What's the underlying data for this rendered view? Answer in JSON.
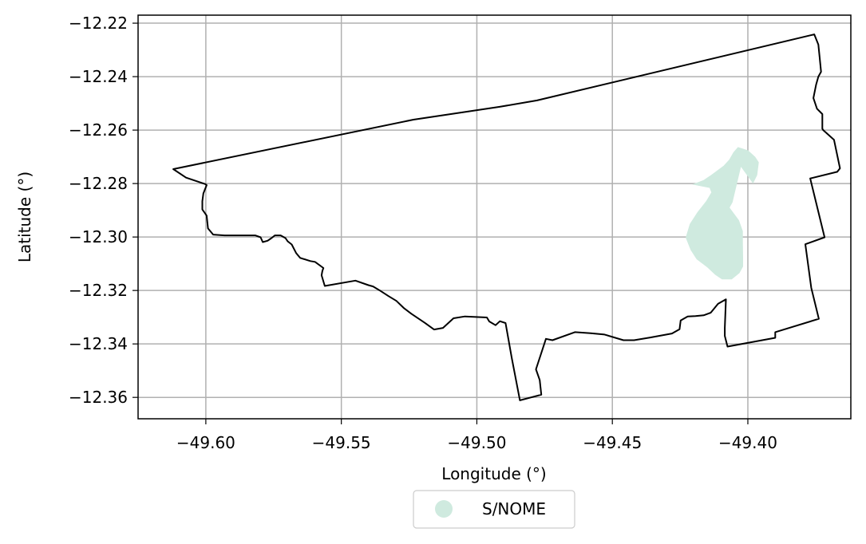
{
  "chart_data": {
    "type": "map",
    "xlabel": "Longitude (°)",
    "ylabel": "Latitude (°)",
    "xlim": [
      -49.625,
      -49.362
    ],
    "ylim": [
      -12.368,
      -12.217
    ],
    "grid": true,
    "legend_position": "below-center",
    "x_ticks": [
      {
        "value": -49.6,
        "label": "−49.60"
      },
      {
        "value": -49.55,
        "label": "−49.55"
      },
      {
        "value": -49.5,
        "label": "−49.50"
      },
      {
        "value": -49.45,
        "label": "−49.45"
      },
      {
        "value": -49.4,
        "label": "−49.40"
      }
    ],
    "y_ticks": [
      {
        "value": -12.22,
        "label": "−12.22"
      },
      {
        "value": -12.24,
        "label": "−12.24"
      },
      {
        "value": -12.26,
        "label": "−12.26"
      },
      {
        "value": -12.28,
        "label": "−12.28"
      },
      {
        "value": -12.3,
        "label": "−12.30"
      },
      {
        "value": -12.32,
        "label": "−12.32"
      },
      {
        "value": -12.34,
        "label": "−12.34"
      },
      {
        "value": -12.36,
        "label": "−12.36"
      }
    ],
    "boundary": {
      "color": "#000000",
      "coords": [
        [
          -49.612,
          -12.2746
        ],
        [
          -49.5234,
          -12.2561
        ],
        [
          -49.4916,
          -12.2513
        ],
        [
          -49.4778,
          -12.2489
        ],
        [
          -49.3755,
          -12.2242
        ],
        [
          -49.374,
          -12.228
        ],
        [
          -49.3735,
          -12.233
        ],
        [
          -49.373,
          -12.2382
        ],
        [
          -49.374,
          -12.24
        ],
        [
          -49.3748,
          -12.243
        ],
        [
          -49.3758,
          -12.248
        ],
        [
          -49.3745,
          -12.252
        ],
        [
          -49.3725,
          -12.254
        ],
        [
          -49.3725,
          -12.2595
        ],
        [
          -49.3722,
          -12.26
        ],
        [
          -49.3682,
          -12.2636
        ],
        [
          -49.366,
          -12.2743
        ],
        [
          -49.367,
          -12.2756
        ],
        [
          -49.377,
          -12.2781
        ],
        [
          -49.3717,
          -12.3001
        ],
        [
          -49.3788,
          -12.3027
        ],
        [
          -49.3766,
          -12.319
        ],
        [
          -49.3738,
          -12.3306
        ],
        [
          -49.3899,
          -12.3356
        ],
        [
          -49.3899,
          -12.3377
        ],
        [
          -49.4075,
          -12.341
        ],
        [
          -49.4085,
          -12.337
        ],
        [
          -49.4085,
          -12.334
        ],
        [
          -49.4081,
          -12.3233
        ],
        [
          -49.411,
          -12.325
        ],
        [
          -49.4137,
          -12.3283
        ],
        [
          -49.4163,
          -12.3293
        ],
        [
          -49.4193,
          -12.3296
        ],
        [
          -49.4222,
          -12.3297
        ],
        [
          -49.4248,
          -12.3312
        ],
        [
          -49.4252,
          -12.3345
        ],
        [
          -49.428,
          -12.3361
        ],
        [
          -49.436,
          -12.3376
        ],
        [
          -49.442,
          -12.3386
        ],
        [
          -49.4459,
          -12.3386
        ],
        [
          -49.4529,
          -12.3365
        ],
        [
          -49.458,
          -12.336
        ],
        [
          -49.4638,
          -12.3356
        ],
        [
          -49.4721,
          -12.3386
        ],
        [
          -49.4745,
          -12.3381
        ],
        [
          -49.4782,
          -12.3495
        ],
        [
          -49.4768,
          -12.3535
        ],
        [
          -49.4762,
          -12.359
        ],
        [
          -49.4841,
          -12.3611
        ],
        [
          -49.4871,
          -12.3453
        ],
        [
          -49.4894,
          -12.3322
        ],
        [
          -49.4915,
          -12.3315
        ],
        [
          -49.4931,
          -12.333
        ],
        [
          -49.4954,
          -12.3316
        ],
        [
          -49.4963,
          -12.3301
        ],
        [
          -49.5044,
          -12.3297
        ],
        [
          -49.5086,
          -12.3304
        ],
        [
          -49.5125,
          -12.334
        ],
        [
          -49.5158,
          -12.3346
        ],
        [
          -49.5192,
          -12.3321
        ],
        [
          -49.5242,
          -12.3287
        ],
        [
          -49.5268,
          -12.3267
        ],
        [
          -49.5297,
          -12.3239
        ],
        [
          -49.5326,
          -12.3221
        ],
        [
          -49.5358,
          -12.32
        ],
        [
          -49.5383,
          -12.3185
        ],
        [
          -49.54,
          -12.318
        ],
        [
          -49.5448,
          -12.3163
        ],
        [
          -49.5561,
          -12.3183
        ],
        [
          -49.5573,
          -12.3143
        ],
        [
          -49.557,
          -12.3127
        ],
        [
          -49.5566,
          -12.3116
        ],
        [
          -49.5597,
          -12.3093
        ],
        [
          -49.5614,
          -12.309
        ],
        [
          -49.5652,
          -12.3078
        ],
        [
          -49.5667,
          -12.306
        ],
        [
          -49.5683,
          -12.3028
        ],
        [
          -49.5698,
          -12.3016
        ],
        [
          -49.5706,
          -12.3004
        ],
        [
          -49.5724,
          -12.2994
        ],
        [
          -49.5745,
          -12.2994
        ],
        [
          -49.5758,
          -12.3004
        ],
        [
          -49.5772,
          -12.3014
        ],
        [
          -49.579,
          -12.3019
        ],
        [
          -49.5798,
          -12.3001
        ],
        [
          -49.5818,
          -12.2994
        ],
        [
          -49.5875,
          -12.2994
        ],
        [
          -49.5931,
          -12.2994
        ],
        [
          -49.5973,
          -12.2991
        ],
        [
          -49.5992,
          -12.2968
        ],
        [
          -49.5997,
          -12.292
        ],
        [
          -49.6013,
          -12.2897
        ],
        [
          -49.6013,
          -12.2866
        ],
        [
          -49.6009,
          -12.2837
        ],
        [
          -49.5997,
          -12.2806
        ],
        [
          -49.6002,
          -12.2802
        ],
        [
          -49.6073,
          -12.2778
        ],
        [
          -49.612,
          -12.2746
        ]
      ]
    },
    "series": [
      {
        "name": "S/NOME",
        "color": "#cfeadf",
        "coords": [
          [
            -49.42,
            -12.2803
          ],
          [
            -49.4162,
            -12.2788
          ],
          [
            -49.4133,
            -12.2768
          ],
          [
            -49.4088,
            -12.2734
          ],
          [
            -49.4068,
            -12.2712
          ],
          [
            -49.4052,
            -12.2684
          ],
          [
            -49.4036,
            -12.2665
          ],
          [
            -49.4,
            -12.2677
          ],
          [
            -49.3974,
            -12.2701
          ],
          [
            -49.3961,
            -12.2721
          ],
          [
            -49.3967,
            -12.2768
          ],
          [
            -49.3981,
            -12.2797
          ],
          [
            -49.4026,
            -12.2734
          ],
          [
            -49.4058,
            -12.287
          ],
          [
            -49.4069,
            -12.289
          ],
          [
            -49.4034,
            -12.2938
          ],
          [
            -49.402,
            -12.2978
          ],
          [
            -49.402,
            -12.302
          ],
          [
            -49.4019,
            -12.308
          ],
          [
            -49.4019,
            -12.311
          ],
          [
            -49.4032,
            -12.3134
          ],
          [
            -49.406,
            -12.3157
          ],
          [
            -49.4095,
            -12.3157
          ],
          [
            -49.412,
            -12.314
          ],
          [
            -49.4148,
            -12.3113
          ],
          [
            -49.4188,
            -12.3082
          ],
          [
            -49.421,
            -12.3048
          ],
          [
            -49.4228,
            -12.3002
          ],
          [
            -49.4213,
            -12.2952
          ],
          [
            -49.4185,
            -12.2908
          ],
          [
            -49.4153,
            -12.2867
          ],
          [
            -49.4133,
            -12.2833
          ],
          [
            -49.414,
            -12.2815
          ],
          [
            -49.42,
            -12.2803
          ]
        ]
      }
    ]
  },
  "colors": {
    "grid": "#b0b0b0",
    "axes": "#000000",
    "legend_border": "#cccccc"
  }
}
